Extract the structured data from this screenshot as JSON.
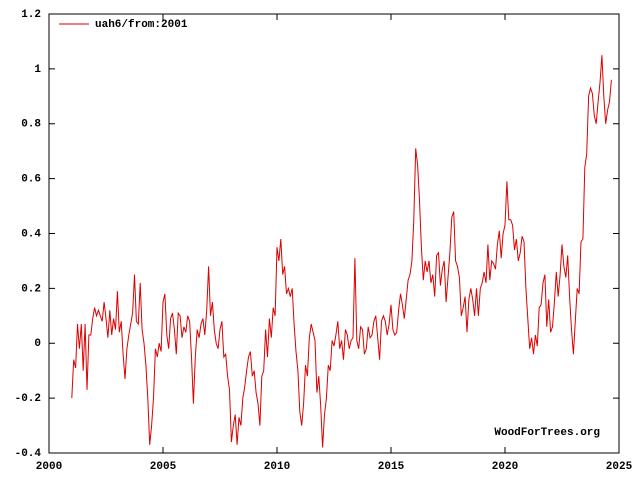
{
  "chart_data": {
    "type": "line",
    "legend": "top-left",
    "annotation": "WoodForTrees.org",
    "xlim": [
      2000,
      2025
    ],
    "xticks": [
      2000,
      2005,
      2010,
      2015,
      2020,
      2025
    ],
    "ylim": [
      -0.4,
      1.2
    ],
    "yticks": [
      -0.4,
      -0.2,
      0,
      0.2,
      0.4,
      0.6,
      0.8,
      1,
      1.2
    ],
    "x": [
      2001,
      2001.083,
      2001.167,
      2001.25,
      2001.333,
      2001.417,
      2001.5,
      2001.583,
      2001.667,
      2001.75,
      2001.833,
      2001.917,
      2002,
      2002.083,
      2002.167,
      2002.25,
      2002.333,
      2002.417,
      2002.5,
      2002.583,
      2002.667,
      2002.75,
      2002.833,
      2002.917,
      2003,
      2003.083,
      2003.167,
      2003.25,
      2003.333,
      2003.417,
      2003.5,
      2003.583,
      2003.667,
      2003.75,
      2003.833,
      2003.917,
      2004,
      2004.083,
      2004.167,
      2004.25,
      2004.333,
      2004.417,
      2004.5,
      2004.583,
      2004.667,
      2004.75,
      2004.833,
      2004.917,
      2005,
      2005.083,
      2005.167,
      2005.25,
      2005.333,
      2005.417,
      2005.5,
      2005.583,
      2005.667,
      2005.75,
      2005.833,
      2005.917,
      2006,
      2006.083,
      2006.167,
      2006.25,
      2006.333,
      2006.417,
      2006.5,
      2006.583,
      2006.667,
      2006.75,
      2006.833,
      2006.917,
      2007,
      2007.083,
      2007.167,
      2007.25,
      2007.333,
      2007.417,
      2007.5,
      2007.583,
      2007.667,
      2007.75,
      2007.833,
      2007.917,
      2008,
      2008.083,
      2008.167,
      2008.25,
      2008.333,
      2008.417,
      2008.5,
      2008.583,
      2008.667,
      2008.75,
      2008.833,
      2008.917,
      2009,
      2009.083,
      2009.167,
      2009.25,
      2009.333,
      2009.417,
      2009.5,
      2009.583,
      2009.667,
      2009.75,
      2009.833,
      2009.917,
      2010,
      2010.083,
      2010.167,
      2010.25,
      2010.333,
      2010.417,
      2010.5,
      2010.583,
      2010.667,
      2010.75,
      2010.833,
      2010.917,
      2011,
      2011.083,
      2011.167,
      2011.25,
      2011.333,
      2011.417,
      2011.5,
      2011.583,
      2011.667,
      2011.75,
      2011.833,
      2011.917,
      2012,
      2012.083,
      2012.167,
      2012.25,
      2012.333,
      2012.417,
      2012.5,
      2012.583,
      2012.667,
      2012.75,
      2012.833,
      2012.917,
      2013,
      2013.083,
      2013.167,
      2013.25,
      2013.333,
      2013.417,
      2013.5,
      2013.583,
      2013.667,
      2013.75,
      2013.833,
      2013.917,
      2014,
      2014.083,
      2014.167,
      2014.25,
      2014.333,
      2014.417,
      2014.5,
      2014.583,
      2014.667,
      2014.75,
      2014.833,
      2014.917,
      2015,
      2015.083,
      2015.167,
      2015.25,
      2015.333,
      2015.417,
      2015.5,
      2015.583,
      2015.667,
      2015.75,
      2015.833,
      2015.917,
      2016,
      2016.083,
      2016.167,
      2016.25,
      2016.333,
      2016.417,
      2016.5,
      2016.583,
      2016.667,
      2016.75,
      2016.833,
      2016.917,
      2017,
      2017.083,
      2017.167,
      2017.25,
      2017.333,
      2017.417,
      2017.5,
      2017.583,
      2017.667,
      2017.75,
      2017.833,
      2017.917,
      2018,
      2018.083,
      2018.167,
      2018.25,
      2018.333,
      2018.417,
      2018.5,
      2018.583,
      2018.667,
      2018.75,
      2018.833,
      2018.917,
      2019,
      2019.083,
      2019.167,
      2019.25,
      2019.333,
      2019.417,
      2019.5,
      2019.583,
      2019.667,
      2019.75,
      2019.833,
      2019.917,
      2020,
      2020.083,
      2020.167,
      2020.25,
      2020.333,
      2020.417,
      2020.5,
      2020.583,
      2020.667,
      2020.75,
      2020.833,
      2020.917,
      2021,
      2021.083,
      2021.167,
      2021.25,
      2021.333,
      2021.417,
      2021.5,
      2021.583,
      2021.667,
      2021.75,
      2021.833,
      2021.917,
      2022,
      2022.083,
      2022.167,
      2022.25,
      2022.333,
      2022.417,
      2022.5,
      2022.583,
      2022.667,
      2022.75,
      2022.833,
      2022.917,
      2023,
      2023.083,
      2023.167,
      2023.25,
      2023.333,
      2023.417,
      2023.5,
      2023.583,
      2023.667,
      2023.75,
      2023.833,
      2023.917,
      2024,
      2024.083,
      2024.167,
      2024.25,
      2024.333,
      2024.417,
      2024.5,
      2024.583,
      2024.667
    ],
    "series": [
      {
        "name": "uah6/from:2001",
        "color": "#dd0000",
        "values": [
          -0.2,
          -0.06,
          -0.09,
          0.07,
          -0.02,
          0.07,
          -0.1,
          0.07,
          -0.17,
          0.03,
          0.03,
          0.09,
          0.13,
          0.1,
          0.12,
          0.1,
          0.08,
          0.15,
          0.09,
          0.02,
          0.12,
          0.03,
          0.09,
          0.05,
          0.19,
          0.04,
          0.08,
          -0.04,
          -0.13,
          -0.02,
          0.03,
          0.07,
          0.11,
          0.25,
          0.08,
          0.07,
          0.22,
          0.05,
          0.0,
          -0.08,
          -0.2,
          -0.37,
          -0.3,
          -0.2,
          -0.02,
          -0.05,
          0.0,
          -0.03,
          0.15,
          0.18,
          0.03,
          -0.02,
          0.09,
          0.11,
          0.05,
          -0.04,
          0.11,
          0.1,
          0.02,
          0.06,
          0.04,
          0.1,
          0.08,
          -0.05,
          -0.22,
          -0.05,
          0.05,
          0.02,
          0.07,
          0.09,
          0.03,
          0.12,
          0.28,
          0.1,
          0.15,
          0.05,
          0.0,
          -0.02,
          0.05,
          0.08,
          -0.05,
          -0.04,
          -0.12,
          -0.17,
          -0.36,
          -0.3,
          -0.26,
          -0.37,
          -0.27,
          -0.3,
          -0.2,
          -0.16,
          -0.1,
          -0.05,
          -0.03,
          -0.12,
          -0.1,
          -0.18,
          -0.22,
          -0.3,
          -0.12,
          -0.1,
          0.05,
          -0.05,
          0.09,
          0.02,
          0.13,
          0.1,
          0.35,
          0.3,
          0.38,
          0.25,
          0.28,
          0.18,
          0.2,
          0.17,
          0.2,
          0.07,
          -0.03,
          -0.1,
          -0.25,
          -0.3,
          -0.22,
          -0.08,
          -0.12,
          0.02,
          0.07,
          0.04,
          0.01,
          -0.18,
          -0.12,
          -0.23,
          -0.38,
          -0.26,
          -0.2,
          -0.08,
          -0.1,
          0.01,
          -0.01,
          0.03,
          0.08,
          -0.02,
          0.01,
          -0.06,
          0.05,
          0.03,
          -0.02,
          0.01,
          0.02,
          0.31,
          0.01,
          -0.02,
          0.06,
          0.05,
          -0.04,
          -0.02,
          0.06,
          0.02,
          0.03,
          0.08,
          0.1,
          0.02,
          -0.06,
          0.08,
          0.1,
          0.08,
          0.03,
          0.07,
          0.14,
          0.05,
          0.03,
          0.04,
          0.12,
          0.18,
          0.14,
          0.09,
          0.16,
          0.23,
          0.25,
          0.3,
          0.45,
          0.71,
          0.65,
          0.52,
          0.35,
          0.23,
          0.3,
          0.26,
          0.3,
          0.22,
          0.25,
          0.17,
          0.32,
          0.33,
          0.21,
          0.27,
          0.3,
          0.15,
          0.24,
          0.33,
          0.46,
          0.48,
          0.3,
          0.28,
          0.24,
          0.1,
          0.13,
          0.17,
          0.04,
          0.16,
          0.2,
          0.16,
          0.1,
          0.2,
          0.1,
          0.2,
          0.22,
          0.26,
          0.22,
          0.36,
          0.23,
          0.3,
          0.29,
          0.27,
          0.36,
          0.41,
          0.31,
          0.4,
          0.43,
          0.59,
          0.45,
          0.45,
          0.43,
          0.34,
          0.38,
          0.3,
          0.33,
          0.39,
          0.37,
          0.2,
          0.09,
          -0.02,
          0.02,
          -0.04,
          0.03,
          -0.01,
          0.13,
          0.14,
          0.22,
          0.25,
          0.06,
          0.16,
          0.04,
          0.06,
          0.15,
          0.26,
          0.17,
          0.25,
          0.36,
          0.28,
          0.24,
          0.32,
          0.17,
          0.05,
          -0.04,
          0.08,
          0.2,
          0.18,
          0.37,
          0.38,
          0.64,
          0.69,
          0.9,
          0.93,
          0.91,
          0.83,
          0.8,
          0.88,
          0.95,
          1.05,
          0.9,
          0.8,
          0.85,
          0.88,
          0.96
        ]
      }
    ]
  }
}
